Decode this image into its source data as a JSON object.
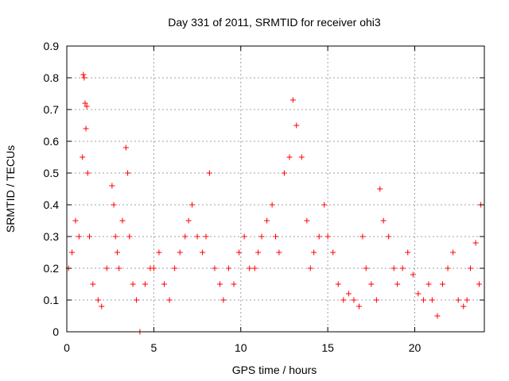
{
  "chart_data": {
    "type": "scatter",
    "title": "Day 331 of 2011, SRMTID for receiver ohi3",
    "xlabel": "GPS time / hours",
    "ylabel": "SRMTID / TECUs",
    "xlim": [
      0,
      24
    ],
    "ylim": [
      0,
      0.9
    ],
    "xticks": [
      0,
      5,
      10,
      15,
      20
    ],
    "xtick_labels": [
      "0",
      "5",
      "10",
      "15",
      "20"
    ],
    "yticks": [
      0,
      0.1,
      0.2,
      0.3,
      0.4,
      0.5,
      0.6,
      0.7,
      0.8,
      0.9
    ],
    "ytick_labels": [
      "0",
      "0.1",
      "0.2",
      "0.3",
      "0.4",
      "0.5",
      "0.6",
      "0.7",
      "0.8",
      "0.9"
    ],
    "grid": true,
    "marker": "+",
    "color": "#ff0000",
    "series": [
      {
        "name": "SRMTID",
        "x": [
          0.1,
          0.3,
          0.5,
          0.7,
          0.9,
          0.95,
          1.0,
          1.05,
          1.1,
          1.15,
          1.2,
          1.3,
          1.5,
          1.8,
          2.0,
          2.3,
          2.6,
          2.7,
          2.8,
          2.9,
          3.0,
          3.2,
          3.4,
          3.5,
          3.6,
          3.8,
          4.0,
          4.2,
          4.5,
          4.8,
          5.0,
          5.3,
          5.6,
          5.9,
          6.2,
          6.5,
          6.8,
          7.0,
          7.2,
          7.5,
          7.8,
          8.0,
          8.2,
          8.5,
          8.8,
          9.0,
          9.3,
          9.6,
          9.9,
          10.2,
          10.5,
          10.8,
          11.0,
          11.2,
          11.5,
          11.8,
          12.0,
          12.2,
          12.5,
          12.8,
          13.0,
          13.2,
          13.5,
          13.8,
          14.0,
          14.2,
          14.5,
          14.8,
          15.0,
          15.3,
          15.6,
          15.9,
          16.2,
          16.5,
          16.8,
          17.0,
          17.2,
          17.5,
          17.8,
          18.0,
          18.2,
          18.5,
          18.8,
          19.0,
          19.3,
          19.6,
          19.9,
          20.2,
          20.5,
          20.8,
          21.0,
          21.3,
          21.6,
          21.9,
          22.2,
          22.5,
          22.8,
          23.0,
          23.2,
          23.5,
          23.7,
          23.8
        ],
        "y": [
          0.2,
          0.25,
          0.35,
          0.3,
          0.55,
          0.81,
          0.8,
          0.72,
          0.64,
          0.71,
          0.5,
          0.3,
          0.15,
          0.1,
          0.08,
          0.2,
          0.46,
          0.4,
          0.3,
          0.25,
          0.2,
          0.35,
          0.58,
          0.5,
          0.3,
          0.15,
          0.1,
          0.0,
          0.15,
          0.2,
          0.2,
          0.25,
          0.15,
          0.1,
          0.2,
          0.25,
          0.3,
          0.35,
          0.4,
          0.3,
          0.25,
          0.3,
          0.5,
          0.2,
          0.15,
          0.1,
          0.2,
          0.15,
          0.25,
          0.3,
          0.2,
          0.2,
          0.25,
          0.3,
          0.35,
          0.4,
          0.3,
          0.25,
          0.5,
          0.55,
          0.73,
          0.65,
          0.55,
          0.35,
          0.2,
          0.25,
          0.3,
          0.4,
          0.3,
          0.25,
          0.15,
          0.1,
          0.12,
          0.1,
          0.08,
          0.3,
          0.2,
          0.15,
          0.1,
          0.45,
          0.35,
          0.3,
          0.2,
          0.15,
          0.2,
          0.25,
          0.18,
          0.12,
          0.1,
          0.15,
          0.1,
          0.05,
          0.15,
          0.2,
          0.25,
          0.1,
          0.08,
          0.1,
          0.2,
          0.28,
          0.15,
          0.4
        ]
      }
    ]
  }
}
